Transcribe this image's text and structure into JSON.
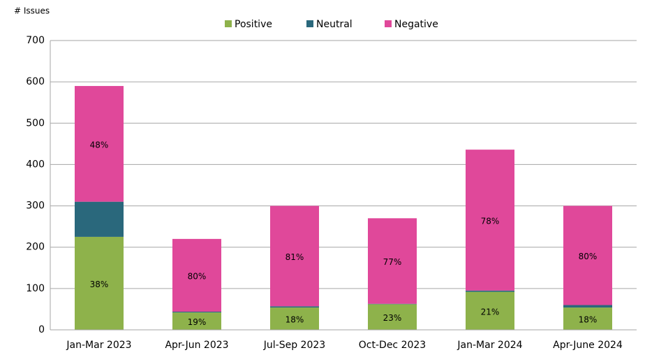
{
  "chart_data": {
    "type": "stacked_bar",
    "y_label": "# Issues",
    "categories": [
      "Jan-Mar 2023",
      "Apr-Jun 2023",
      "Jul-Sep 2023",
      "Oct-Dec 2023",
      "Jan-Mar 2024",
      "Apr-June 2024"
    ],
    "series": [
      {
        "name": "Positive",
        "color": "#8eb24b",
        "values": [
          225,
          42,
          54,
          62,
          92,
          54
        ],
        "labels": [
          "38%",
          "19%",
          "18%",
          "23%",
          "21%",
          "18%"
        ]
      },
      {
        "name": "Neutral",
        "color": "#2a687c",
        "values": [
          85,
          2,
          3,
          1,
          3,
          6
        ]
      },
      {
        "name": "Negative",
        "color": "#e0489a",
        "values": [
          280,
          176,
          243,
          207,
          341,
          240
        ],
        "labels": [
          "48%",
          "80%",
          "81%",
          "77%",
          "78%",
          "80%"
        ]
      }
    ],
    "ylim": [
      0,
      700
    ],
    "yticks": [
      0,
      100,
      200,
      300,
      400,
      500,
      600,
      700
    ],
    "grid": true,
    "legend": "top"
  }
}
